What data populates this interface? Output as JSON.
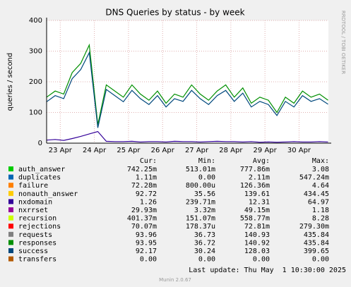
{
  "chart_data": {
    "type": "line",
    "title": "DNS Queries by status - by week",
    "ylabel": "queries / second",
    "side_label": "RRDTOOL / TOBI OETIKER",
    "stat_headers": [
      "Cur:",
      "Min:",
      "Avg:",
      "Max:"
    ],
    "last_update": "Last update: Thu May  1 10:30:00 2025",
    "footer": "Munin 2.0.67",
    "grid": true,
    "xlim": [
      0.1,
      8.36
    ],
    "xticks": [
      {
        "value": 0.5,
        "label": "23 Apr"
      },
      {
        "value": 1.5,
        "label": "24 Apr"
      },
      {
        "value": 2.5,
        "label": "25 Apr"
      },
      {
        "value": 3.5,
        "label": "26 Apr"
      },
      {
        "value": 4.5,
        "label": "27 Apr"
      },
      {
        "value": 5.5,
        "label": "28 Apr"
      },
      {
        "value": 6.5,
        "label": "29 Apr"
      },
      {
        "value": 7.5,
        "label": "30 Apr"
      }
    ],
    "ylim": [
      0,
      400
    ],
    "yticks": [
      0,
      100,
      200,
      300,
      400
    ],
    "x": [
      0.1,
      0.35,
      0.6,
      0.85,
      1.1,
      1.35,
      1.6,
      1.85,
      2.1,
      2.35,
      2.6,
      2.85,
      3.1,
      3.35,
      3.6,
      3.85,
      4.1,
      4.35,
      4.6,
      4.85,
      5.1,
      5.35,
      5.6,
      5.85,
      6.1,
      6.35,
      6.6,
      6.85,
      7.1,
      7.35,
      7.6,
      7.85,
      8.1,
      8.35
    ],
    "series": [
      {
        "name": "auth_answer",
        "color": "#00cc00",
        "stats": [
          "742.25m",
          "513.01m",
          "777.86m",
          "3.08"
        ]
      },
      {
        "name": "duplicates",
        "color": "#0066b3",
        "stats": [
          "1.11m",
          "0.00",
          "2.11m",
          "547.24m"
        ]
      },
      {
        "name": "failure",
        "color": "#ff8000",
        "stats": [
          "72.28m",
          "800.00u",
          "126.36m",
          "4.64"
        ]
      },
      {
        "name": "nonauth_answer",
        "color": "#ffcc00",
        "stats": [
          "92.72",
          "35.56",
          "139.61",
          "434.45"
        ]
      },
      {
        "name": "nxdomain",
        "color": "#330099",
        "stats": [
          "1.26",
          "239.71m",
          "12.31",
          "64.97"
        ],
        "values": [
          10,
          12,
          9,
          15,
          22,
          30,
          38,
          6,
          5,
          5,
          6,
          4,
          5,
          5,
          4,
          6,
          5,
          5,
          4,
          5,
          6,
          5,
          5,
          4,
          5,
          3,
          4,
          3,
          4,
          5,
          4,
          4,
          5,
          4
        ]
      },
      {
        "name": "nxrrset",
        "color": "#990099",
        "stats": [
          "29.93m",
          "3.32m",
          "49.15m",
          "1.18"
        ]
      },
      {
        "name": "recursion",
        "color": "#ccff00",
        "stats": [
          "401.37m",
          "151.07m",
          "558.77m",
          "8.28"
        ]
      },
      {
        "name": "rejections",
        "color": "#ff0000",
        "stats": [
          "70.07m",
          "178.37u",
          "72.81m",
          "279.30m"
        ]
      },
      {
        "name": "requests",
        "color": "#808080",
        "stats": [
          "93.96",
          "36.73",
          "140.93",
          "435.84"
        ]
      },
      {
        "name": "responses",
        "color": "#008f00",
        "stats": [
          "93.95",
          "36.72",
          "140.92",
          "435.84"
        ],
        "values": [
          150,
          170,
          160,
          230,
          260,
          320,
          60,
          190,
          170,
          150,
          190,
          160,
          140,
          170,
          130,
          160,
          150,
          190,
          160,
          140,
          170,
          190,
          150,
          180,
          130,
          150,
          140,
          100,
          150,
          130,
          170,
          150,
          160,
          140
        ]
      },
      {
        "name": "success",
        "color": "#00487d",
        "stats": [
          "92.17",
          "30.24",
          "128.03",
          "399.65"
        ],
        "values": [
          135,
          155,
          145,
          210,
          240,
          295,
          50,
          175,
          155,
          135,
          172,
          145,
          126,
          155,
          118,
          145,
          136,
          172,
          145,
          126,
          155,
          172,
          136,
          163,
          118,
          136,
          126,
          90,
          136,
          118,
          155,
          136,
          145,
          127
        ]
      },
      {
        "name": "transfers",
        "color": "#b35a00",
        "stats": [
          "0.00",
          "0.00",
          "0.00",
          "0.00"
        ]
      }
    ]
  }
}
